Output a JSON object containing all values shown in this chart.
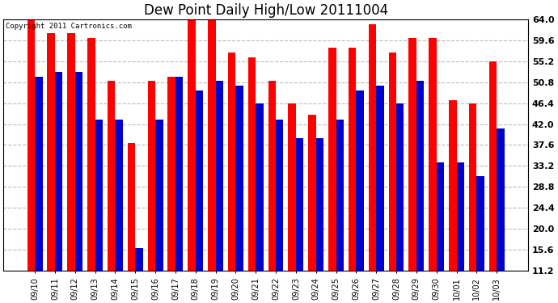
{
  "title": "Dew Point Daily High/Low 20111004",
  "copyright": "Copyright 2011 Cartronics.com",
  "dates": [
    "09/10",
    "09/11",
    "09/12",
    "09/13",
    "09/14",
    "09/15",
    "09/16",
    "09/17",
    "09/18",
    "09/19",
    "09/20",
    "09/21",
    "09/22",
    "09/23",
    "09/24",
    "09/25",
    "09/26",
    "09/27",
    "09/28",
    "09/29",
    "09/30",
    "10/01",
    "10/02",
    "10/03"
  ],
  "highs": [
    64.0,
    61.0,
    61.0,
    60.0,
    51.0,
    38.0,
    51.0,
    52.0,
    64.0,
    64.0,
    57.0,
    56.0,
    51.0,
    46.4,
    44.0,
    58.0,
    58.0,
    63.0,
    57.0,
    60.0,
    60.0,
    47.0,
    46.4,
    55.2
  ],
  "lows": [
    52.0,
    53.0,
    53.0,
    43.0,
    43.0,
    16.0,
    43.0,
    52.0,
    49.0,
    51.0,
    50.0,
    46.4,
    43.0,
    39.0,
    39.0,
    43.0,
    49.0,
    50.0,
    46.4,
    51.0,
    34.0,
    34.0,
    31.0,
    41.0
  ],
  "high_color": "#ff0000",
  "low_color": "#0000cc",
  "bar_width": 0.38,
  "ylim": [
    11.2,
    64.0
  ],
  "yticks": [
    11.2,
    15.6,
    20.0,
    24.4,
    28.8,
    33.2,
    37.6,
    42.0,
    46.4,
    50.8,
    55.2,
    59.6,
    64.0
  ],
  "bg_color": "#ffffff",
  "grid_color": "#bbbbbb",
  "title_fontsize": 12
}
